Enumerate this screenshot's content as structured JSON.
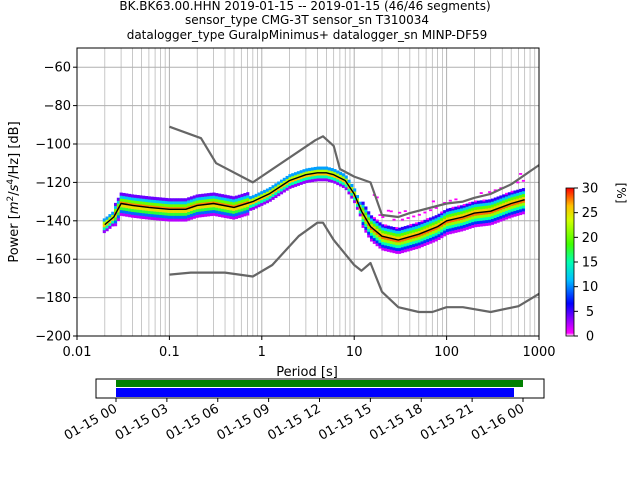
{
  "chart_data": {
    "type": "heatmap",
    "title_lines": [
      "BK.BK63.00.HHN   2019-01-15 -- 2019-01-15  (46/46 segments)",
      "sensor_type CMG-3T sensor_sn T310034",
      "datalogger_type GuralpMinimus+ datalogger_sn MINP-DF59"
    ],
    "xlabel": "Period [s]",
    "ylabel": "Power [m²/s⁴/Hz] [dB]",
    "ylabel_parts": {
      "main": "Power [",
      "m": "m",
      "two": "2",
      "slash1": "/",
      "s": "s",
      "four": "4",
      "hz": "/Hz] [dB]"
    },
    "xscale": "log",
    "xlim": [
      0.01,
      1000
    ],
    "ylim": [
      -200,
      -50
    ],
    "xticks": [
      {
        "value": 0.01,
        "label": "0.01"
      },
      {
        "value": 0.1,
        "label": "0.1"
      },
      {
        "value": 1,
        "label": "1"
      },
      {
        "value": 10,
        "label": "10"
      },
      {
        "value": 100,
        "label": "100"
      },
      {
        "value": 1000,
        "label": "1000"
      }
    ],
    "yticks": [
      {
        "value": -60,
        "label": "−60"
      },
      {
        "value": -80,
        "label": "−80"
      },
      {
        "value": -100,
        "label": "−100"
      },
      {
        "value": -120,
        "label": "−120"
      },
      {
        "value": -140,
        "label": "−140"
      },
      {
        "value": -160,
        "label": "−160"
      },
      {
        "value": -180,
        "label": "−180"
      },
      {
        "value": -200,
        "label": "−200"
      }
    ],
    "grid": true,
    "nhnm": {
      "x": [
        0.1,
        0.22,
        0.32,
        0.8,
        3.8,
        4.6,
        6.0,
        7.0,
        10,
        15,
        20,
        30,
        40,
        100,
        150,
        200,
        300,
        500,
        1000
      ],
      "y": [
        -91,
        -97,
        -110,
        -120,
        -98,
        -96,
        -101,
        -113,
        -117,
        -120,
        -137,
        -138,
        -136,
        -131,
        -130,
        -128,
        -126,
        -121,
        -111
      ]
    },
    "nlnm": {
      "x": [
        0.1,
        0.17,
        0.4,
        0.8,
        1.3,
        2.5,
        4.0,
        4.6,
        6.0,
        10,
        12,
        15,
        20,
        30,
        50,
        70,
        100,
        150,
        300,
        600,
        1000
      ],
      "y": [
        -168,
        -167,
        -167,
        -169,
        -163,
        -148,
        -141,
        -141,
        -150,
        -163,
        -166,
        -162,
        -177,
        -185,
        -187.5,
        -187.5,
        -185,
        -185,
        -187.5,
        -184.5,
        -178
      ]
    },
    "mode_curve": {
      "x": [
        0.02,
        0.025,
        0.03,
        0.04,
        0.06,
        0.1,
        0.15,
        0.2,
        0.3,
        0.5,
        0.8,
        1.2,
        2,
        3,
        4,
        5,
        6,
        8,
        10,
        12,
        15,
        20,
        30,
        50,
        80,
        100,
        150,
        200,
        300,
        500,
        700
      ],
      "y": [
        -142,
        -138,
        -131,
        -132,
        -133,
        -134,
        -134,
        -132,
        -131,
        -133,
        -130,
        -126,
        -119,
        -116,
        -115,
        -115,
        -116,
        -119,
        -126,
        -135,
        -143,
        -148,
        -150,
        -147,
        -143,
        -140,
        -138,
        -136,
        -135,
        -131,
        -129
      ]
    },
    "colorbar": {
      "label": "[%]",
      "range": [
        0,
        30
      ],
      "ticks": [
        {
          "value": 0,
          "label": "0"
        },
        {
          "value": 5,
          "label": "5"
        },
        {
          "value": 10,
          "label": "10"
        },
        {
          "value": 15,
          "label": "15"
        },
        {
          "value": 20,
          "label": "20"
        },
        {
          "value": 25,
          "label": "25"
        },
        {
          "value": 30,
          "label": "30"
        }
      ]
    },
    "colors": {
      "nm_curve": "#666666",
      "mode_curve": "#000000",
      "grid": "#b0b0b0"
    }
  },
  "timeline": {
    "ticks": [
      "01-15 00",
      "01-15 03",
      "01-15 06",
      "01-15 09",
      "01-15 12",
      "01-15 15",
      "01-15 18",
      "01-15 21",
      "01-16 00"
    ],
    "colors": {
      "green_bar": "#008000",
      "blue_bar": "#0000ff"
    }
  }
}
